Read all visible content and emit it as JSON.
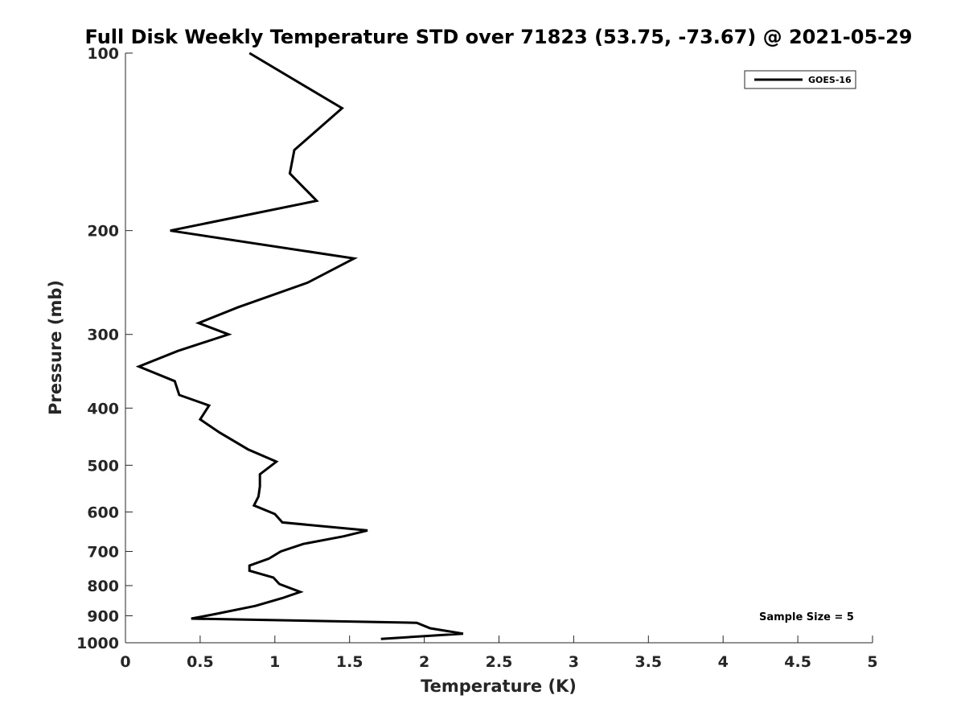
{
  "chart_data": {
    "type": "line",
    "title": "Full Disk Weekly Temperature STD over 71823 (53.75, -73.67) @ 2021-05-29",
    "xlabel": "Temperature (K)",
    "ylabel": "Pressure (mb)",
    "xlim": [
      0,
      5
    ],
    "ylim": [
      100,
      1000
    ],
    "y_scale": "log",
    "y_reversed": true,
    "grid": false,
    "legend_position": "top-right",
    "x_ticks": [
      0,
      0.5,
      1,
      1.5,
      2,
      2.5,
      3,
      3.5,
      4,
      4.5,
      5
    ],
    "x_tick_labels": [
      "0",
      "0.5",
      "1",
      "1.5",
      "2",
      "2.5",
      "3",
      "3.5",
      "4",
      "4.5",
      "5"
    ],
    "y_ticks": [
      100,
      200,
      300,
      400,
      500,
      600,
      700,
      800,
      900,
      1000
    ],
    "y_tick_labels": [
      "100",
      "200",
      "300",
      "400",
      "500",
      "600",
      "700",
      "800",
      "900",
      "1000"
    ],
    "series": [
      {
        "name": "GOES-16",
        "color": "#000000",
        "x": [
          0.83,
          1.45,
          1.13,
          1.1,
          1.28,
          0.3,
          1.53,
          1.22,
          0.75,
          0.49,
          0.69,
          0.35,
          0.09,
          0.33,
          0.36,
          0.56,
          0.5,
          0.63,
          0.82,
          1.01,
          0.9,
          0.9,
          0.89,
          0.86,
          1.0,
          1.05,
          1.62,
          1.46,
          1.19,
          1.04,
          0.96,
          0.83,
          0.83,
          0.99,
          1.03,
          1.17,
          1.05,
          0.87,
          0.61,
          0.44,
          1.95,
          2.04,
          2.26,
          1.71
        ],
        "y": [
          100,
          124,
          146,
          160,
          178,
          200,
          223,
          245,
          270,
          287,
          300,
          320,
          340,
          360,
          380,
          396,
          418,
          440,
          470,
          493,
          518,
          543,
          565,
          585,
          605,
          625,
          645,
          660,
          680,
          700,
          720,
          740,
          755,
          775,
          795,
          820,
          840,
          866,
          893,
          910,
          925,
          945,
          965,
          985
        ]
      }
    ],
    "annotations": [
      "Sample Size = 5"
    ]
  }
}
